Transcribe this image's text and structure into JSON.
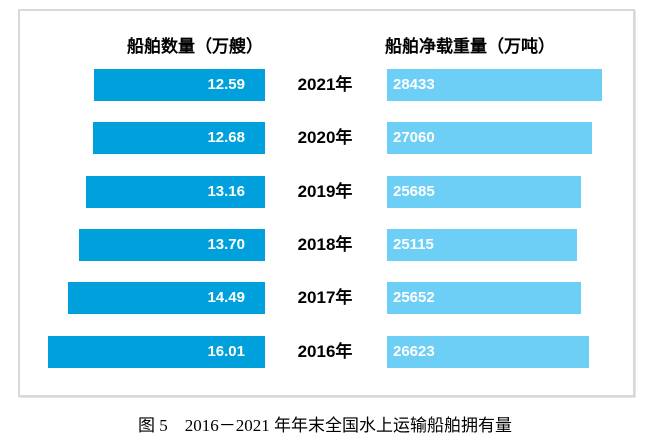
{
  "page": {
    "background": "#ffffff"
  },
  "chart": {
    "left_header": "船舶数量（万艘）",
    "right_header": "船舶净载重量（万吨）",
    "left_bar_color": "#00a0dc",
    "right_bar_color": "#6dcff6",
    "frame_border_color": "#d9d9d9",
    "value_text_color": "#ffffff"
  },
  "rows": [
    {
      "year": "2021年",
      "left_label": "12.59",
      "right_label": "28433"
    },
    {
      "year": "2020年",
      "left_label": "12.68",
      "right_label": "27060"
    },
    {
      "year": "2019年",
      "left_label": "13.16",
      "right_label": "25685"
    },
    {
      "year": "2018年",
      "left_label": "13.70",
      "right_label": "25115"
    },
    {
      "year": "2017年",
      "left_label": "14.49",
      "right_label": "25652"
    },
    {
      "year": "2016年",
      "left_label": "16.01",
      "right_label": "26623"
    }
  ],
  "caption": "图 5　2016－2021 年年末全国水上运输船舶拥有量",
  "chart_data": {
    "type": "bar",
    "variant": "diverging-horizontal-tornado",
    "categories": [
      "2021年",
      "2020年",
      "2019年",
      "2018年",
      "2017年",
      "2016年"
    ],
    "series": [
      {
        "name": "船舶数量（万艘）",
        "side": "left",
        "color": "#00a0dc",
        "values": [
          12.59,
          12.68,
          13.16,
          13.7,
          14.49,
          16.01
        ]
      },
      {
        "name": "船舶净载重量（万吨）",
        "side": "right",
        "color": "#6dcff6",
        "values": [
          28433,
          27060,
          25685,
          25115,
          25652,
          26623
        ]
      }
    ],
    "title": "图 5　2016－2021 年年末全国水上运输船舶拥有量",
    "xlabel": "",
    "ylabel": "",
    "value_labels": "inside-bars-white-bold",
    "legend": "column-headers-above-bars",
    "grid": false,
    "left_axis_range": [
      0,
      16.01
    ],
    "right_axis_range": [
      0,
      28433
    ]
  }
}
